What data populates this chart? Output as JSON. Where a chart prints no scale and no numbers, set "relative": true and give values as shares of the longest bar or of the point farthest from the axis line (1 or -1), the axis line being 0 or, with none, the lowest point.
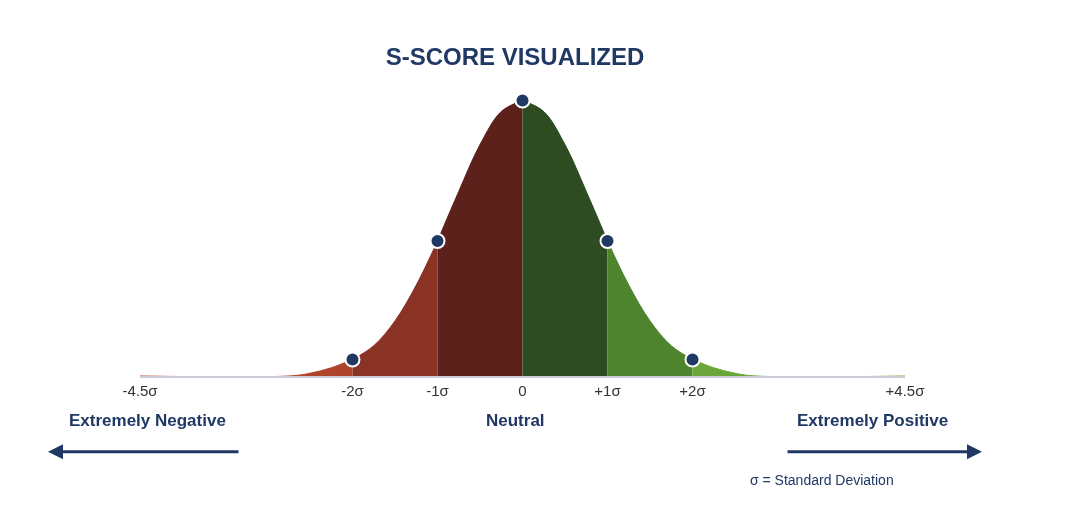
{
  "chart_data": {
    "type": "area",
    "title": "S-SCORE VISUALIZED",
    "relative": true,
    "xlim": [
      -4.5,
      4.5
    ],
    "xticks": [
      {
        "value": -4.5,
        "label": "-4.5σ"
      },
      {
        "value": -2,
        "label": "-2σ"
      },
      {
        "value": -1,
        "label": "-1σ"
      },
      {
        "value": 0,
        "label": "0"
      },
      {
        "value": 1,
        "label": "+1σ"
      },
      {
        "value": 2,
        "label": "+2σ"
      },
      {
        "value": 4.5,
        "label": "+4.5σ"
      }
    ],
    "series": [
      {
        "color": "#b0432c",
        "x": [
          -4.5,
          -2.75,
          -2.5,
          -2.25,
          -2
        ],
        "values": [
          0,
          0,
          0.01,
          0.03,
          0.06
        ]
      },
      {
        "color": "#8a3223",
        "x": [
          -2,
          -1.75,
          -1.5,
          -1.25,
          -1
        ],
        "values": [
          0.06,
          0.11,
          0.2,
          0.33,
          0.49
        ]
      },
      {
        "color": "#5c211a",
        "x": [
          -1,
          -0.75,
          -0.5,
          -0.25,
          0
        ],
        "values": [
          0.49,
          0.67,
          0.84,
          0.96,
          1
        ]
      },
      {
        "color": "#2e4c22",
        "x": [
          0,
          0.25,
          0.5,
          0.75,
          1
        ],
        "values": [
          1,
          0.96,
          0.84,
          0.67,
          0.49
        ]
      },
      {
        "color": "#4d842d",
        "x": [
          1,
          1.25,
          1.5,
          1.75,
          2
        ],
        "values": [
          0.49,
          0.33,
          0.2,
          0.11,
          0.06
        ]
      },
      {
        "color": "#6aa63a",
        "x": [
          2,
          2.25,
          2.5,
          2.75,
          4.5
        ],
        "values": [
          0.06,
          0.03,
          0.01,
          0,
          0
        ]
      },
      {
        "type": "scatter",
        "color": "#1f3864",
        "marker": "circle",
        "x": [
          -2,
          -1,
          0,
          1,
          2
        ],
        "values": [
          0.06,
          0.49,
          1,
          0.49,
          0.06
        ]
      }
    ],
    "annotations": [
      "Extremely Negative",
      "Neutral",
      "Extremely Positive",
      "σ = Standard Deviation"
    ]
  }
}
